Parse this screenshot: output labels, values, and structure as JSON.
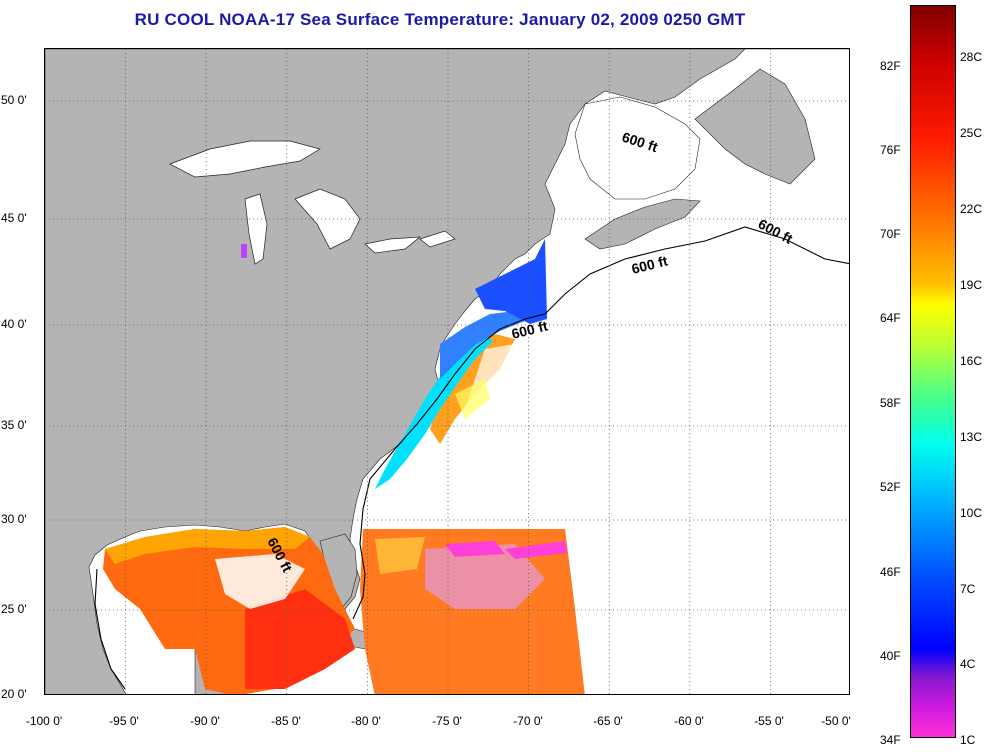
{
  "title": "RU COOL  NOAA-17  Sea Surface Temperature:  January 02, 2009 0250 GMT",
  "map": {
    "lon_labels": [
      "-100 0'",
      "-95 0'",
      "-90 0'",
      "-85 0'",
      "-80 0'",
      "-75 0'",
      "-70 0'",
      "-65 0'",
      "-60 0'",
      "-55 0'",
      "-50 0'"
    ],
    "lat_labels": [
      "50 0'",
      "45 0'",
      "40 0'",
      "35 0'",
      "30 0'",
      "25 0'",
      "20 0'"
    ],
    "contour_labels": [
      "600 ft",
      "600 ft",
      "600 ft",
      "600 ft",
      "600 ft"
    ],
    "colors": {
      "land": "#b4b4b4",
      "ocean_no_data": "#ffffff",
      "lakes": "#ffffff"
    }
  },
  "colorbar": {
    "fahrenheit": [
      "82F",
      "76F",
      "70F",
      "64F",
      "58F",
      "52F",
      "46F",
      "40F",
      "34F"
    ],
    "celsius": [
      "28C",
      "25C",
      "22C",
      "19C",
      "16C",
      "13C",
      "10C",
      "7C",
      "4C",
      "1C"
    ]
  }
}
